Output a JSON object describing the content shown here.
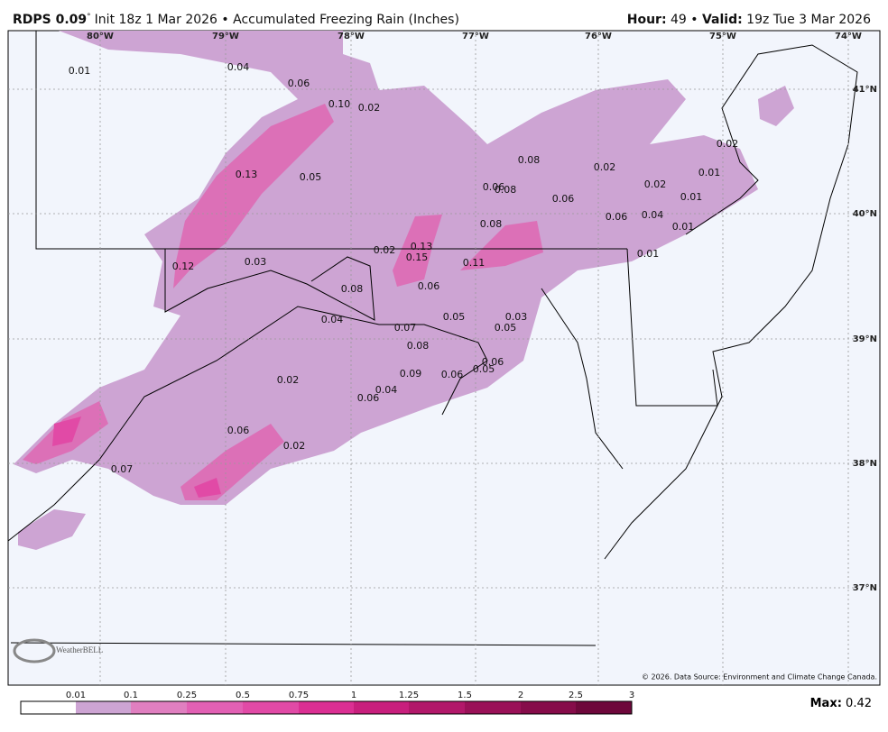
{
  "header": {
    "model": "RDPS 0.09",
    "degree": "°",
    "title": "Init 18z 1 Mar 2026 • Accumulated Freezing Rain (Inches)",
    "hour_label": "Hour:",
    "hour": "49 •",
    "valid_label": "Valid:",
    "valid": "19z Tue 3 Mar 2026"
  },
  "map": {
    "longitudes": [
      "80°W",
      "79°W",
      "78°W",
      "77°W",
      "76°W",
      "75°W",
      "74°W"
    ],
    "latitudes": [
      "41°N",
      "40°N",
      "39°N",
      "38°N",
      "37°N"
    ],
    "point_values": [
      "0.01",
      "0.04",
      "0.06",
      "0.10",
      "0.02",
      "0.13",
      "0.05",
      "0.08",
      "0.02",
      "0.02",
      "0.01",
      "0.02",
      "0.01",
      "0.06",
      "0.08",
      "0.06",
      "0.06",
      "0.04",
      "0.01",
      "0.08",
      "0.02",
      "0.13",
      "0.15",
      "0.11",
      "0.01",
      "0.12",
      "0.03",
      "0.08",
      "0.06",
      "0.04",
      "0.05",
      "0.03",
      "0.05",
      "0.07",
      "0.08",
      "0.06",
      "0.05",
      "0.09",
      "0.06",
      "0.02",
      "0.04",
      "0.06",
      "0.06",
      "0.02",
      "0.07"
    ],
    "logo": "WeatherBELL",
    "copyright": "© 2026. Data Source: Environment and Climate Change Canada."
  },
  "colorbar": {
    "ticks": [
      "0.01",
      "0.1",
      "0.25",
      "0.5",
      "0.75",
      "1",
      "1.25",
      "1.5",
      "2",
      "2.5",
      "3"
    ],
    "colors": [
      "#ffffff",
      "#cda4d3",
      "#e07fc0",
      "#e260b4",
      "#e14aa6",
      "#db2f93",
      "#c81f7d",
      "#b2186a",
      "#9a1158",
      "#860c4a",
      "#6e083b"
    ]
  },
  "max": {
    "label": "Max:",
    "value": "0.42"
  }
}
